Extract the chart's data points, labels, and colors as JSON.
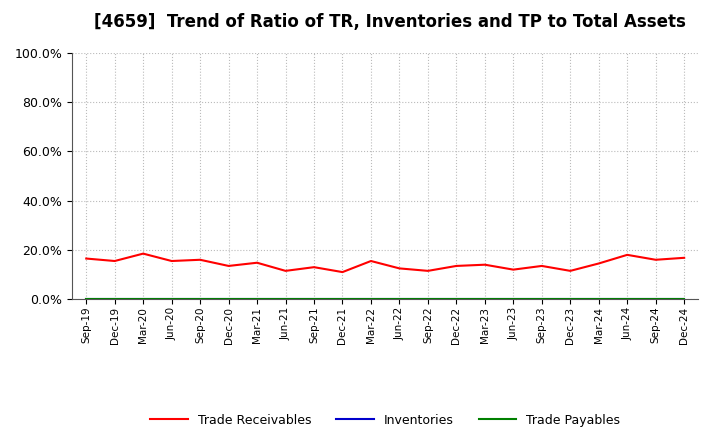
{
  "title": "[4659]  Trend of Ratio of TR, Inventories and TP to Total Assets",
  "x_labels": [
    "Sep-19",
    "Dec-19",
    "Mar-20",
    "Jun-20",
    "Sep-20",
    "Dec-20",
    "Mar-21",
    "Jun-21",
    "Sep-21",
    "Dec-21",
    "Mar-22",
    "Jun-22",
    "Sep-22",
    "Dec-22",
    "Mar-23",
    "Jun-23",
    "Sep-23",
    "Dec-23",
    "Mar-24",
    "Jun-24",
    "Sep-24",
    "Dec-24"
  ],
  "trade_receivables": [
    0.165,
    0.155,
    0.185,
    0.155,
    0.16,
    0.135,
    0.148,
    0.115,
    0.13,
    0.11,
    0.155,
    0.125,
    0.115,
    0.135,
    0.14,
    0.12,
    0.135,
    0.115,
    0.145,
    0.18,
    0.16,
    0.168
  ],
  "inventories": [
    0.002,
    0.002,
    0.002,
    0.002,
    0.002,
    0.002,
    0.002,
    0.002,
    0.002,
    0.002,
    0.002,
    0.002,
    0.002,
    0.002,
    0.002,
    0.002,
    0.002,
    0.002,
    0.002,
    0.002,
    0.002,
    0.002
  ],
  "trade_payables": [
    0.001,
    0.001,
    0.001,
    0.001,
    0.001,
    0.001,
    0.001,
    0.001,
    0.001,
    0.001,
    0.001,
    0.001,
    0.001,
    0.001,
    0.001,
    0.001,
    0.001,
    0.001,
    0.001,
    0.001,
    0.001,
    0.001
  ],
  "tr_color": "#FF0000",
  "inv_color": "#0000CC",
  "tp_color": "#008000",
  "ylim": [
    0.0,
    1.0
  ],
  "yticks": [
    0.0,
    0.2,
    0.4,
    0.6,
    0.8,
    1.0
  ],
  "background_color": "#FFFFFF",
  "plot_bg_color": "#FFFFFF",
  "grid_color": "#BBBBBB",
  "title_fontsize": 12,
  "legend_labels": [
    "Trade Receivables",
    "Inventories",
    "Trade Payables"
  ]
}
